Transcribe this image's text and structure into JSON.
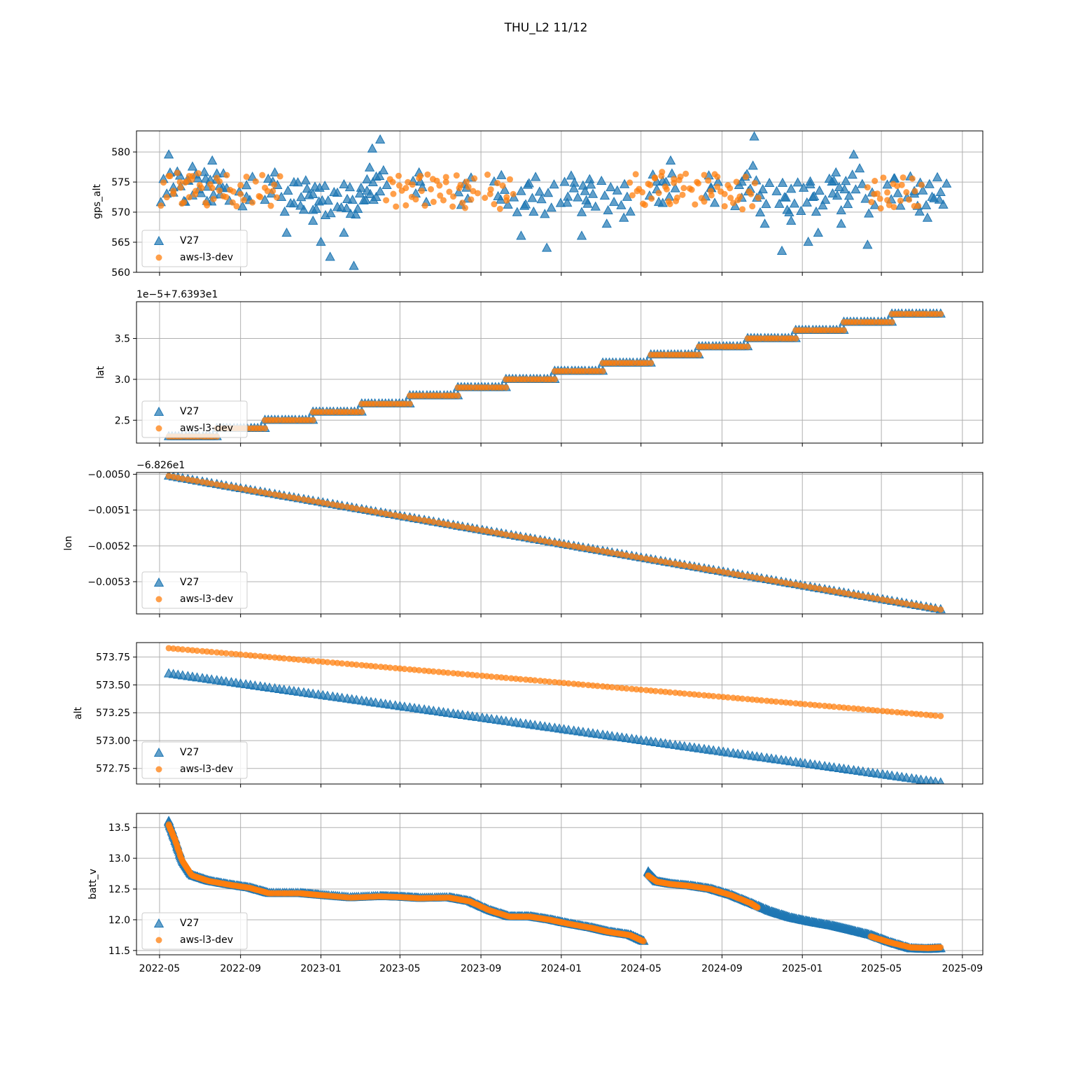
{
  "title": "THU_L2 11/12",
  "colors": {
    "v27": "#1f77b4",
    "aws": "#ff7f0e",
    "grid": "#b0b0b0"
  },
  "legend": {
    "series": [
      "V27",
      "aws-l3-dev"
    ],
    "placement": "lower-left"
  },
  "x_axis": {
    "ticks": [
      "2022-05",
      "2022-09",
      "2023-01",
      "2023-05",
      "2023-09",
      "2024-01",
      "2024-05",
      "2024-09",
      "2025-01",
      "2025-05",
      "2025-09"
    ],
    "range": [
      "2022-03-27",
      "2025-10-02"
    ]
  },
  "chart_data": [
    {
      "type": "scatter",
      "ylabel": "gps_alt",
      "offset_text": "",
      "ylim": [
        560,
        583.5
      ],
      "yticks": [
        560,
        565,
        570,
        575,
        580
      ],
      "ytick_labels": [
        "560",
        "565",
        "570",
        "575",
        "580"
      ],
      "grid": true,
      "series": [
        {
          "name": "V27",
          "marker": "triangle",
          "x": [
            "2022-05-15",
            "2022-06-01",
            "2022-06-20",
            "2022-07-10",
            "2022-07-20",
            "2022-08-05",
            "2022-09-10",
            "2022-10-20",
            "2022-11-10",
            "2022-12-01",
            "2022-12-20",
            "2023-01-01",
            "2023-01-15",
            "2023-02-05",
            "2023-02-20",
            "2023-03-10",
            "2023-03-20",
            "2023-04-01",
            "2023-06-01",
            "2023-08-10",
            "2023-10-01",
            "2023-11-01",
            "2023-11-20",
            "2023-12-10",
            "2024-01-10",
            "2024-02-01",
            "2024-02-15",
            "2024-03-10",
            "2024-04-05",
            "2024-05-25",
            "2024-06-15",
            "2024-08-15",
            "2024-10-01",
            "2024-10-20",
            "2024-11-05",
            "2024-12-01",
            "2024-12-15",
            "2025-01-10",
            "2025-01-25",
            "2025-02-15",
            "2025-03-01",
            "2025-03-20",
            "2025-04-10",
            "2025-05-20",
            "2025-06-20",
            "2025-07-10",
            "2025-07-28"
          ],
          "y": [
            579.5,
            576,
            577.5,
            575.5,
            578.5,
            574,
            572.5,
            575,
            566.5,
            571,
            568.5,
            565,
            562.5,
            566.5,
            561,
            572,
            580.5,
            582,
            575,
            574,
            572,
            566,
            570,
            564,
            571.5,
            566,
            574.5,
            568,
            569,
            575,
            578.5,
            574,
            575,
            582.5,
            568,
            563.5,
            568.5,
            565,
            566.5,
            575,
            568,
            579.5,
            564.5,
            575.5,
            573,
            569,
            572
          ]
        },
        {
          "name": "aws-l3-dev",
          "marker": "circle",
          "x": [
            "2022-05-15",
            "2022-06-01",
            "2022-06-15",
            "2022-07-01",
            "2022-07-20",
            "2022-08-10",
            "2022-09-01",
            "2022-10-01",
            "2022-10-20",
            "2023-04-20",
            "2023-05-10",
            "2023-06-01",
            "2023-06-20",
            "2023-07-10",
            "2023-08-01",
            "2023-08-20",
            "2023-09-15",
            "2023-10-10",
            "2024-04-25",
            "2024-05-15",
            "2024-06-01",
            "2024-06-20",
            "2024-07-05",
            "2024-07-25",
            "2024-08-15",
            "2024-09-05",
            "2024-09-25",
            "2024-10-15",
            "2025-04-20",
            "2025-05-10",
            "2025-06-01",
            "2025-06-20"
          ],
          "y": [
            576,
            575,
            576,
            574.5,
            574,
            572.5,
            573,
            572.5,
            573.5,
            575,
            574,
            576,
            575.5,
            575,
            574.5,
            573.5,
            573,
            572.5,
            573.5,
            574.5,
            576,
            575.5,
            574,
            575,
            573.5,
            573,
            572,
            573,
            573,
            572,
            574.5,
            571
          ]
        }
      ]
    },
    {
      "type": "line",
      "ylabel": "lat",
      "offset_text": "1e−5+7.6393e1",
      "ylim": [
        2.22,
        3.95
      ],
      "yticks": [
        2.5,
        3.0,
        3.5
      ],
      "ytick_labels": [
        "2.5",
        "3.0",
        "3.5"
      ],
      "grid": true,
      "series": [
        {
          "name": "V27",
          "marker": "triangle",
          "style": "steps",
          "step_start": "2022-05-15",
          "step_end": "2025-07-30",
          "y_start": 2.3,
          "y_step": 0.1,
          "n_steps": 16
        },
        {
          "name": "aws-l3-dev",
          "marker": "circle",
          "style": "steps",
          "step_start": "2022-05-15",
          "step_end": "2025-07-30",
          "y_start": 2.3,
          "y_step": 0.1,
          "n_steps": 16
        }
      ]
    },
    {
      "type": "line",
      "ylabel": "lon",
      "offset_text": "−6.826e1",
      "ylim": [
        -0.00539,
        -0.004995
      ],
      "yticks": [
        -0.005,
        -0.0051,
        -0.0052,
        -0.0053
      ],
      "ytick_labels": [
        "−0.0050",
        "−0.0051",
        "−0.0052",
        "−0.0053"
      ],
      "grid": true,
      "series": [
        {
          "name": "V27",
          "marker": "triangle",
          "x": [
            "2022-05-15",
            "2025-07-30"
          ],
          "y": [
            -0.005005,
            -0.005378
          ]
        },
        {
          "name": "aws-l3-dev",
          "marker": "circle",
          "x": [
            "2022-05-15",
            "2025-07-30"
          ],
          "y": [
            -0.005005,
            -0.005378
          ]
        }
      ]
    },
    {
      "type": "line",
      "ylabel": "alt",
      "offset_text": "",
      "ylim": [
        572.61,
        573.88
      ],
      "yticks": [
        572.75,
        573.0,
        573.25,
        573.5,
        573.75
      ],
      "ytick_labels": [
        "572.75",
        "573.00",
        "573.25",
        "573.50",
        "573.75"
      ],
      "grid": true,
      "series": [
        {
          "name": "V27",
          "marker": "triangle",
          "x": [
            "2022-05-15",
            "2025-07-30"
          ],
          "y": [
            573.6,
            572.62
          ]
        },
        {
          "name": "aws-l3-dev",
          "marker": "circle",
          "x": [
            "2022-05-15",
            "2025-07-30"
          ],
          "y": [
            573.83,
            573.22
          ]
        }
      ]
    },
    {
      "type": "line",
      "ylabel": "batt_v",
      "offset_text": "",
      "ylim": [
        11.43,
        13.73
      ],
      "yticks": [
        11.5,
        12.0,
        12.5,
        13.0,
        13.5
      ],
      "ytick_labels": [
        "11.5",
        "12.0",
        "12.5",
        "13.0",
        "13.5"
      ],
      "grid": true,
      "series": [
        {
          "name": "V27",
          "marker": "triangle",
          "segments": [
            {
              "x": [
                "2022-05-15",
                "2022-05-25",
                "2022-06-05",
                "2022-06-20",
                "2022-07-15",
                "2022-08-15",
                "2022-09-15",
                "2022-10-15",
                "2022-12-01",
                "2023-01-01",
                "2023-02-15",
                "2023-04-01",
                "2023-05-01",
                "2023-06-01",
                "2023-07-15",
                "2023-08-15",
                "2023-09-15",
                "2023-10-15",
                "2023-11-15",
                "2023-12-15",
                "2024-01-15",
                "2024-02-15",
                "2024-03-15",
                "2024-04-15",
                "2024-05-05"
              ],
              "y": [
                13.6,
                13.3,
                12.95,
                12.72,
                12.63,
                12.57,
                12.52,
                12.43,
                12.43,
                12.4,
                12.36,
                12.38,
                12.37,
                12.35,
                12.36,
                12.3,
                12.15,
                12.05,
                12.05,
                12.0,
                11.93,
                11.87,
                11.8,
                11.75,
                11.65
              ]
            },
            {
              "x": [
                "2024-05-12",
                "2024-05-25",
                "2024-06-15",
                "2024-07-15",
                "2024-08-15",
                "2024-09-15",
                "2024-10-15",
                "2024-11-15",
                "2024-12-15",
                "2025-01-15",
                "2025-02-15",
                "2025-03-15",
                "2025-04-15",
                "2025-05-15",
                "2025-06-15",
                "2025-07-10",
                "2025-07-30"
              ],
              "y": [
                12.78,
                12.62,
                12.58,
                12.55,
                12.5,
                12.4,
                12.27,
                12.13,
                12.03,
                11.96,
                11.9,
                11.83,
                11.75,
                11.63,
                11.53,
                11.52,
                11.53
              ]
            }
          ]
        },
        {
          "name": "aws-l3-dev",
          "marker": "circle",
          "segments": [
            {
              "x": [
                "2022-05-15",
                "2022-05-25",
                "2022-06-05",
                "2022-06-20",
                "2022-07-15",
                "2022-08-15",
                "2022-09-15",
                "2022-10-15",
                "2022-12-01",
                "2023-01-01",
                "2023-02-15",
                "2023-04-01",
                "2023-05-01",
                "2023-06-01",
                "2023-07-15",
                "2023-08-15",
                "2023-09-15",
                "2023-10-15",
                "2023-11-15",
                "2023-12-15",
                "2024-01-15",
                "2024-02-15",
                "2024-03-15",
                "2024-04-15",
                "2024-05-05"
              ],
              "y": [
                13.55,
                13.3,
                12.95,
                12.72,
                12.63,
                12.57,
                12.52,
                12.43,
                12.43,
                12.4,
                12.36,
                12.38,
                12.37,
                12.35,
                12.36,
                12.3,
                12.15,
                12.05,
                12.05,
                12.0,
                11.93,
                11.87,
                11.8,
                11.75,
                11.65
              ]
            },
            {
              "x": [
                "2024-05-12",
                "2024-05-25",
                "2024-06-15",
                "2024-07-15",
                "2024-08-15",
                "2024-09-15",
                "2024-10-15",
                "2024-10-25"
              ],
              "y": [
                12.72,
                12.62,
                12.58,
                12.55,
                12.5,
                12.4,
                12.27,
                12.2
              ]
            },
            {
              "x": [
                "2025-04-15",
                "2025-05-15",
                "2025-06-15",
                "2025-07-10",
                "2025-07-30"
              ],
              "y": [
                11.73,
                11.63,
                11.55,
                11.54,
                11.55
              ]
            }
          ]
        }
      ]
    }
  ]
}
